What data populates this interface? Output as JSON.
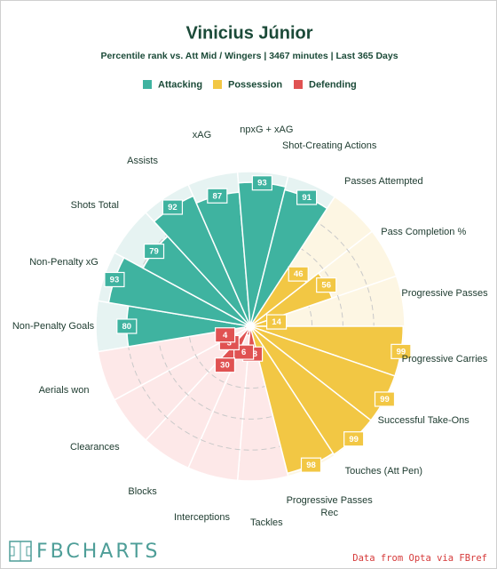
{
  "chart_data": {
    "type": "pizza",
    "title": "Vinicius Júnior",
    "subtitle": "Percentile rank vs. Att Mid / Wingers | 3467 minutes | Last 365 Days",
    "ylim": [
      0,
      100
    ],
    "yticks": [
      20,
      40,
      60,
      80
    ],
    "grid": true,
    "series": [
      {
        "name": "Attacking",
        "color": "#3fb3a0",
        "background_color": "#e6f3f2",
        "categories": [
          "Non-Penalty Goals",
          "Non-Penalty xG",
          "Shots Total",
          "Assists",
          "xAG",
          "npxG + xAG",
          "Shot-Creating Actions"
        ],
        "values": [
          80,
          93,
          79,
          92,
          87,
          93,
          91
        ]
      },
      {
        "name": "Possession",
        "color": "#f2c744",
        "background_color": "#fdf6e3",
        "categories": [
          "Passes Attempted",
          "Pass Completion %",
          "Progressive Passes",
          "Progressive Carries",
          "Successful Take-Ons",
          "Touches (Att Pen)",
          "Progressive Passes Rec"
        ],
        "values": [
          46,
          56,
          14,
          99,
          99,
          99,
          98
        ]
      },
      {
        "name": "Defending",
        "color": "#e05252",
        "background_color": "#fde8e8",
        "categories": [
          "Tackles",
          "Interceptions",
          "Blocks",
          "Clearances",
          "Aerials won"
        ],
        "values": [
          18,
          6,
          30,
          3,
          4
        ]
      }
    ],
    "logo": "FBCHARTS",
    "credit": "Data from Opta via FBref"
  }
}
